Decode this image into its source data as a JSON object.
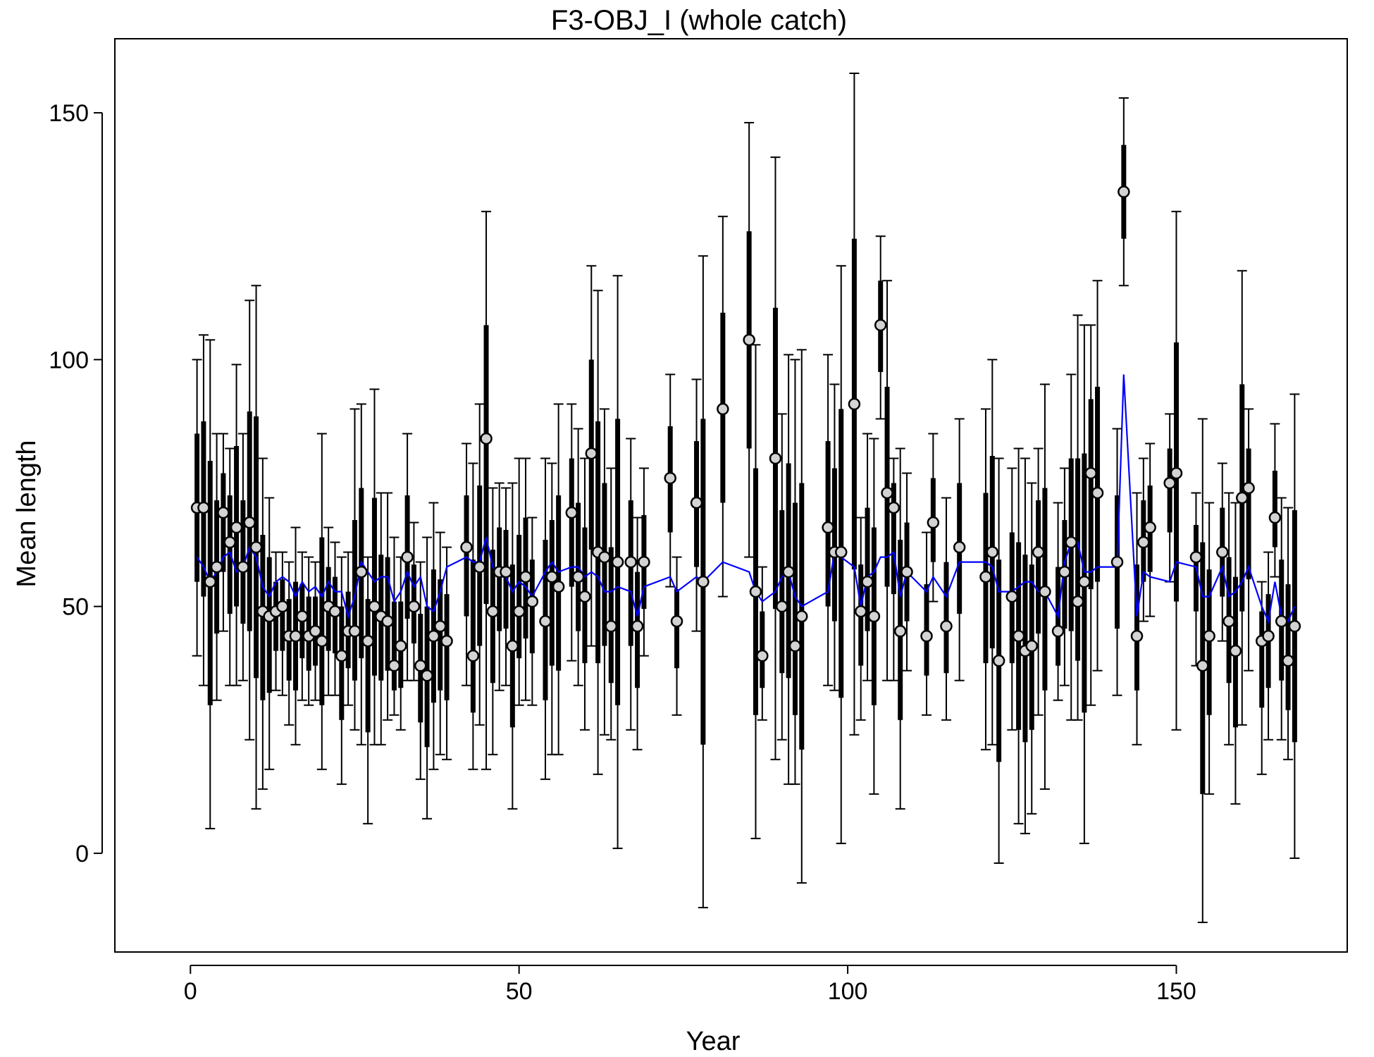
{
  "chart_data": {
    "type": "scatter",
    "title": "F3-OBJ_I (whole catch)",
    "xlabel": "Year",
    "ylabel": "Mean length",
    "xlim": [
      -11.5,
      176
    ],
    "ylim": [
      -20,
      165
    ],
    "xticks": [
      0,
      50,
      100,
      150
    ],
    "yticks": [
      0,
      50,
      100,
      150
    ],
    "grid": false,
    "colors": {
      "observed": "#d3d3d3",
      "errorbar": "#000000",
      "expected": "#0000ff"
    },
    "series": [
      {
        "name": "observed",
        "points": [
          {
            "x": 1,
            "y": 70,
            "lo": 40,
            "hi": 100
          },
          {
            "x": 2,
            "y": 70,
            "lo": 34,
            "hi": 105
          },
          {
            "x": 3,
            "y": 55,
            "lo": 5,
            "hi": 104
          },
          {
            "x": 4,
            "y": 58,
            "lo": 31,
            "hi": 85
          },
          {
            "x": 5,
            "y": 69,
            "lo": 45,
            "hi": 85
          },
          {
            "x": 6,
            "y": 63,
            "lo": 34,
            "hi": 82
          },
          {
            "x": 7,
            "y": 66,
            "lo": 34,
            "hi": 99
          },
          {
            "x": 8,
            "y": 58,
            "lo": 35,
            "hi": 85
          },
          {
            "x": 9,
            "y": 67,
            "lo": 23,
            "hi": 112
          },
          {
            "x": 10,
            "y": 62,
            "lo": 9,
            "hi": 115
          },
          {
            "x": 11,
            "y": 49,
            "lo": 13,
            "hi": 80
          },
          {
            "x": 12,
            "y": 48,
            "lo": 17,
            "hi": 72
          },
          {
            "x": 13,
            "y": 49,
            "lo": 33,
            "hi": 61
          },
          {
            "x": 14,
            "y": 50,
            "lo": 32,
            "hi": 61
          },
          {
            "x": 15,
            "y": 44,
            "lo": 26,
            "hi": 59
          },
          {
            "x": 16,
            "y": 44,
            "lo": 22,
            "hi": 66
          },
          {
            "x": 17,
            "y": 48,
            "lo": 31,
            "hi": 61
          },
          {
            "x": 18,
            "y": 44,
            "lo": 30,
            "hi": 60
          },
          {
            "x": 19,
            "y": 45,
            "lo": 31,
            "hi": 59
          },
          {
            "x": 20,
            "y": 43,
            "lo": 17,
            "hi": 85
          },
          {
            "x": 21,
            "y": 50,
            "lo": 32,
            "hi": 66
          },
          {
            "x": 22,
            "y": 49,
            "lo": 32,
            "hi": 63
          },
          {
            "x": 23,
            "y": 40,
            "lo": 14,
            "hi": 60
          },
          {
            "x": 24,
            "y": 45,
            "lo": 30,
            "hi": 61
          },
          {
            "x": 25,
            "y": 45,
            "lo": 25,
            "hi": 90
          },
          {
            "x": 26,
            "y": 57,
            "lo": 22,
            "hi": 91
          },
          {
            "x": 27,
            "y": 43,
            "lo": 6,
            "hi": 60
          },
          {
            "x": 28,
            "y": 50,
            "lo": 22,
            "hi": 94
          },
          {
            "x": 29,
            "y": 48,
            "lo": 22,
            "hi": 73
          },
          {
            "x": 30,
            "y": 47,
            "lo": 27,
            "hi": 73
          },
          {
            "x": 31,
            "y": 38,
            "lo": 28,
            "hi": 64
          },
          {
            "x": 32,
            "y": 42,
            "lo": 25,
            "hi": 60
          },
          {
            "x": 33,
            "y": 60,
            "lo": 35,
            "hi": 85
          },
          {
            "x": 34,
            "y": 50,
            "lo": 35,
            "hi": 67
          },
          {
            "x": 35,
            "y": 38,
            "lo": 15,
            "hi": 59
          },
          {
            "x": 36,
            "y": 36,
            "lo": 7,
            "hi": 64
          },
          {
            "x": 37,
            "y": 44,
            "lo": 17,
            "hi": 71
          },
          {
            "x": 38,
            "y": 46,
            "lo": 20,
            "hi": 65
          },
          {
            "x": 39,
            "y": 43,
            "lo": 19,
            "hi": 62
          },
          {
            "x": 42,
            "y": 62,
            "lo": 34,
            "hi": 83
          },
          {
            "x": 43,
            "y": 40,
            "lo": 17,
            "hi": 79
          },
          {
            "x": 44,
            "y": 58,
            "lo": 26,
            "hi": 91
          },
          {
            "x": 45,
            "y": 84,
            "lo": 17,
            "hi": 130
          },
          {
            "x": 46,
            "y": 49,
            "lo": 20,
            "hi": 74
          },
          {
            "x": 47,
            "y": 57,
            "lo": 33,
            "hi": 75
          },
          {
            "x": 48,
            "y": 57,
            "lo": 34,
            "hi": 74
          },
          {
            "x": 49,
            "y": 42,
            "lo": 9,
            "hi": 75
          },
          {
            "x": 50,
            "y": 49,
            "lo": 30,
            "hi": 80
          },
          {
            "x": 51,
            "y": 56,
            "lo": 31,
            "hi": 80
          },
          {
            "x": 52,
            "y": 51,
            "lo": 30,
            "hi": 68
          },
          {
            "x": 54,
            "y": 47,
            "lo": 15,
            "hi": 80
          },
          {
            "x": 55,
            "y": 56,
            "lo": 20,
            "hi": 79
          },
          {
            "x": 56,
            "y": 54,
            "lo": 20,
            "hi": 91
          },
          {
            "x": 58,
            "y": 69,
            "lo": 39,
            "hi": 91
          },
          {
            "x": 59,
            "y": 56,
            "lo": 34,
            "hi": 86
          },
          {
            "x": 60,
            "y": 52,
            "lo": 25,
            "hi": 80
          },
          {
            "x": 61,
            "y": 81,
            "lo": 42,
            "hi": 119
          },
          {
            "x": 62,
            "y": 61,
            "lo": 16,
            "hi": 114
          },
          {
            "x": 63,
            "y": 60,
            "lo": 24,
            "hi": 90
          },
          {
            "x": 64,
            "y": 46,
            "lo": 23,
            "hi": 78
          },
          {
            "x": 65,
            "y": 59,
            "lo": 1,
            "hi": 117
          },
          {
            "x": 67,
            "y": 59,
            "lo": 25,
            "hi": 84
          },
          {
            "x": 68,
            "y": 46,
            "lo": 21,
            "hi": 68
          },
          {
            "x": 69,
            "y": 59,
            "lo": 40,
            "hi": 78
          },
          {
            "x": 73,
            "y": 76,
            "lo": 54,
            "hi": 97
          },
          {
            "x": 74,
            "y": 47,
            "lo": 28,
            "hi": 60
          },
          {
            "x": 77,
            "y": 71,
            "lo": 45,
            "hi": 96
          },
          {
            "x": 78,
            "y": 55,
            "lo": -11,
            "hi": 121
          },
          {
            "x": 81,
            "y": 90,
            "lo": 52,
            "hi": 129
          },
          {
            "x": 85,
            "y": 104,
            "lo": 60,
            "hi": 148
          },
          {
            "x": 86,
            "y": 53,
            "lo": 3,
            "hi": 103
          },
          {
            "x": 87,
            "y": 40,
            "lo": 27,
            "hi": 58
          },
          {
            "x": 89,
            "y": 80,
            "lo": 19,
            "hi": 141
          },
          {
            "x": 90,
            "y": 50,
            "lo": 23,
            "hi": 89
          },
          {
            "x": 91,
            "y": 57,
            "lo": 14,
            "hi": 101
          },
          {
            "x": 92,
            "y": 42,
            "lo": 14,
            "hi": 100
          },
          {
            "x": 93,
            "y": 48,
            "lo": -6,
            "hi": 102
          },
          {
            "x": 97,
            "y": 66,
            "lo": 34,
            "hi": 101
          },
          {
            "x": 98,
            "y": 61,
            "lo": 33,
            "hi": 95
          },
          {
            "x": 99,
            "y": 61,
            "lo": 2,
            "hi": 119
          },
          {
            "x": 101,
            "y": 91,
            "lo": 24,
            "hi": 158
          },
          {
            "x": 102,
            "y": 49,
            "lo": 27,
            "hi": 68
          },
          {
            "x": 103,
            "y": 55,
            "lo": 35,
            "hi": 85
          },
          {
            "x": 104,
            "y": 48,
            "lo": 12,
            "hi": 84
          },
          {
            "x": 105,
            "y": 107,
            "lo": 88,
            "hi": 125
          },
          {
            "x": 106,
            "y": 73,
            "lo": 35,
            "hi": 116
          },
          {
            "x": 107,
            "y": 70,
            "lo": 35,
            "hi": 80
          },
          {
            "x": 108,
            "y": 45,
            "lo": 9,
            "hi": 82
          },
          {
            "x": 109,
            "y": 57,
            "lo": 37,
            "hi": 77
          },
          {
            "x": 112,
            "y": 44,
            "lo": 28,
            "hi": 65
          },
          {
            "x": 113,
            "y": 67,
            "lo": 51,
            "hi": 85
          },
          {
            "x": 115,
            "y": 46,
            "lo": 27,
            "hi": 72
          },
          {
            "x": 117,
            "y": 62,
            "lo": 35,
            "hi": 88
          },
          {
            "x": 121,
            "y": 56,
            "lo": 21,
            "hi": 90
          },
          {
            "x": 122,
            "y": 61,
            "lo": 22,
            "hi": 100
          },
          {
            "x": 123,
            "y": 39,
            "lo": -2,
            "hi": 80
          },
          {
            "x": 125,
            "y": 52,
            "lo": 25,
            "hi": 78
          },
          {
            "x": 126,
            "y": 44,
            "lo": 6,
            "hi": 82
          },
          {
            "x": 127,
            "y": 41,
            "lo": 4,
            "hi": 80
          },
          {
            "x": 128,
            "y": 42,
            "lo": 8,
            "hi": 75
          },
          {
            "x": 129,
            "y": 61,
            "lo": 28,
            "hi": 82
          },
          {
            "x": 130,
            "y": 53,
            "lo": 13,
            "hi": 95
          },
          {
            "x": 132,
            "y": 45,
            "lo": 31,
            "hi": 71
          },
          {
            "x": 133,
            "y": 57,
            "lo": 34,
            "hi": 78
          },
          {
            "x": 134,
            "y": 63,
            "lo": 27,
            "hi": 97
          },
          {
            "x": 135,
            "y": 51,
            "lo": 27,
            "hi": 109
          },
          {
            "x": 136,
            "y": 55,
            "lo": 2,
            "hi": 107
          },
          {
            "x": 137,
            "y": 77,
            "lo": 30,
            "hi": 107
          },
          {
            "x": 138,
            "y": 73,
            "lo": 37,
            "hi": 116
          },
          {
            "x": 141,
            "y": 59,
            "lo": 32,
            "hi": 86
          },
          {
            "x": 142,
            "y": 134,
            "lo": 115,
            "hi": 153
          },
          {
            "x": 144,
            "y": 44,
            "lo": 22,
            "hi": 73
          },
          {
            "x": 145,
            "y": 63,
            "lo": 47,
            "hi": 80
          },
          {
            "x": 146,
            "y": 66,
            "lo": 48,
            "hi": 83
          },
          {
            "x": 149,
            "y": 75,
            "lo": 55,
            "hi": 89
          },
          {
            "x": 150,
            "y": 77,
            "lo": 25,
            "hi": 130
          },
          {
            "x": 153,
            "y": 60,
            "lo": 38,
            "hi": 73
          },
          {
            "x": 154,
            "y": 38,
            "lo": -14,
            "hi": 88
          },
          {
            "x": 155,
            "y": 44,
            "lo": 12,
            "hi": 71
          },
          {
            "x": 157,
            "y": 61,
            "lo": 43,
            "hi": 79
          },
          {
            "x": 158,
            "y": 47,
            "lo": 22,
            "hi": 73
          },
          {
            "x": 159,
            "y": 41,
            "lo": 10,
            "hi": 71
          },
          {
            "x": 160,
            "y": 72,
            "lo": 26,
            "hi": 118
          },
          {
            "x": 161,
            "y": 74,
            "lo": 37,
            "hi": 90
          },
          {
            "x": 163,
            "y": 43,
            "lo": 16,
            "hi": 55
          },
          {
            "x": 164,
            "y": 44,
            "lo": 23,
            "hi": 61
          },
          {
            "x": 165,
            "y": 68,
            "lo": 56,
            "hi": 87
          },
          {
            "x": 166,
            "y": 47,
            "lo": 23,
            "hi": 72
          },
          {
            "x": 167,
            "y": 39,
            "lo": 19,
            "hi": 70
          },
          {
            "x": 168,
            "y": 46,
            "lo": -1,
            "hi": 93
          }
        ]
      },
      {
        "name": "expected",
        "x": [
          1,
          2,
          3,
          4,
          5,
          6,
          7,
          8,
          9,
          10,
          11,
          12,
          13,
          14,
          15,
          16,
          17,
          18,
          19,
          20,
          21,
          22,
          23,
          24,
          25,
          26,
          27,
          28,
          29,
          30,
          31,
          32,
          33,
          34,
          35,
          36,
          37,
          38,
          39,
          42,
          43,
          44,
          45,
          46,
          47,
          48,
          49,
          50,
          51,
          52,
          54,
          55,
          56,
          58,
          59,
          60,
          61,
          62,
          63,
          64,
          65,
          67,
          68,
          69,
          73,
          74,
          77,
          78,
          81,
          85,
          86,
          87,
          89,
          90,
          91,
          92,
          93,
          97,
          98,
          99,
          101,
          102,
          103,
          104,
          105,
          106,
          107,
          108,
          109,
          112,
          113,
          115,
          117,
          121,
          122,
          123,
          125,
          126,
          127,
          128,
          129,
          130,
          132,
          133,
          134,
          135,
          136,
          137,
          138,
          141,
          142,
          144,
          145,
          146,
          149,
          150,
          153,
          154,
          155,
          157,
          158,
          159,
          160,
          161,
          163,
          164,
          165,
          166,
          167,
          168
        ],
        "y": [
          60,
          58,
          55,
          57,
          60,
          61,
          57,
          58,
          62,
          60,
          54,
          52,
          55,
          56,
          55,
          52,
          55,
          53,
          54,
          52,
          55,
          53,
          53,
          48,
          52,
          59,
          57,
          55,
          56,
          56,
          51,
          53,
          57,
          54,
          56,
          50,
          49,
          53,
          58,
          60,
          59,
          59,
          64,
          58,
          56,
          56,
          53,
          55,
          54,
          52,
          57,
          59,
          57,
          58,
          58,
          56,
          57,
          56,
          53,
          53,
          54,
          53,
          48,
          54,
          56,
          53,
          56,
          55,
          59,
          57,
          53,
          51,
          53,
          56,
          57,
          52,
          50,
          53,
          61,
          60,
          58,
          50,
          56,
          57,
          60,
          60,
          61,
          52,
          57,
          53,
          56,
          52,
          59,
          59,
          58,
          53,
          53,
          54,
          55,
          55,
          53,
          53,
          48,
          59,
          63,
          63,
          57,
          57,
          58,
          58,
          97,
          48,
          57,
          56,
          55,
          59,
          58,
          52,
          52,
          58,
          52,
          53,
          55,
          58,
          50,
          47,
          55,
          48,
          47,
          50
        ]
      }
    ]
  }
}
